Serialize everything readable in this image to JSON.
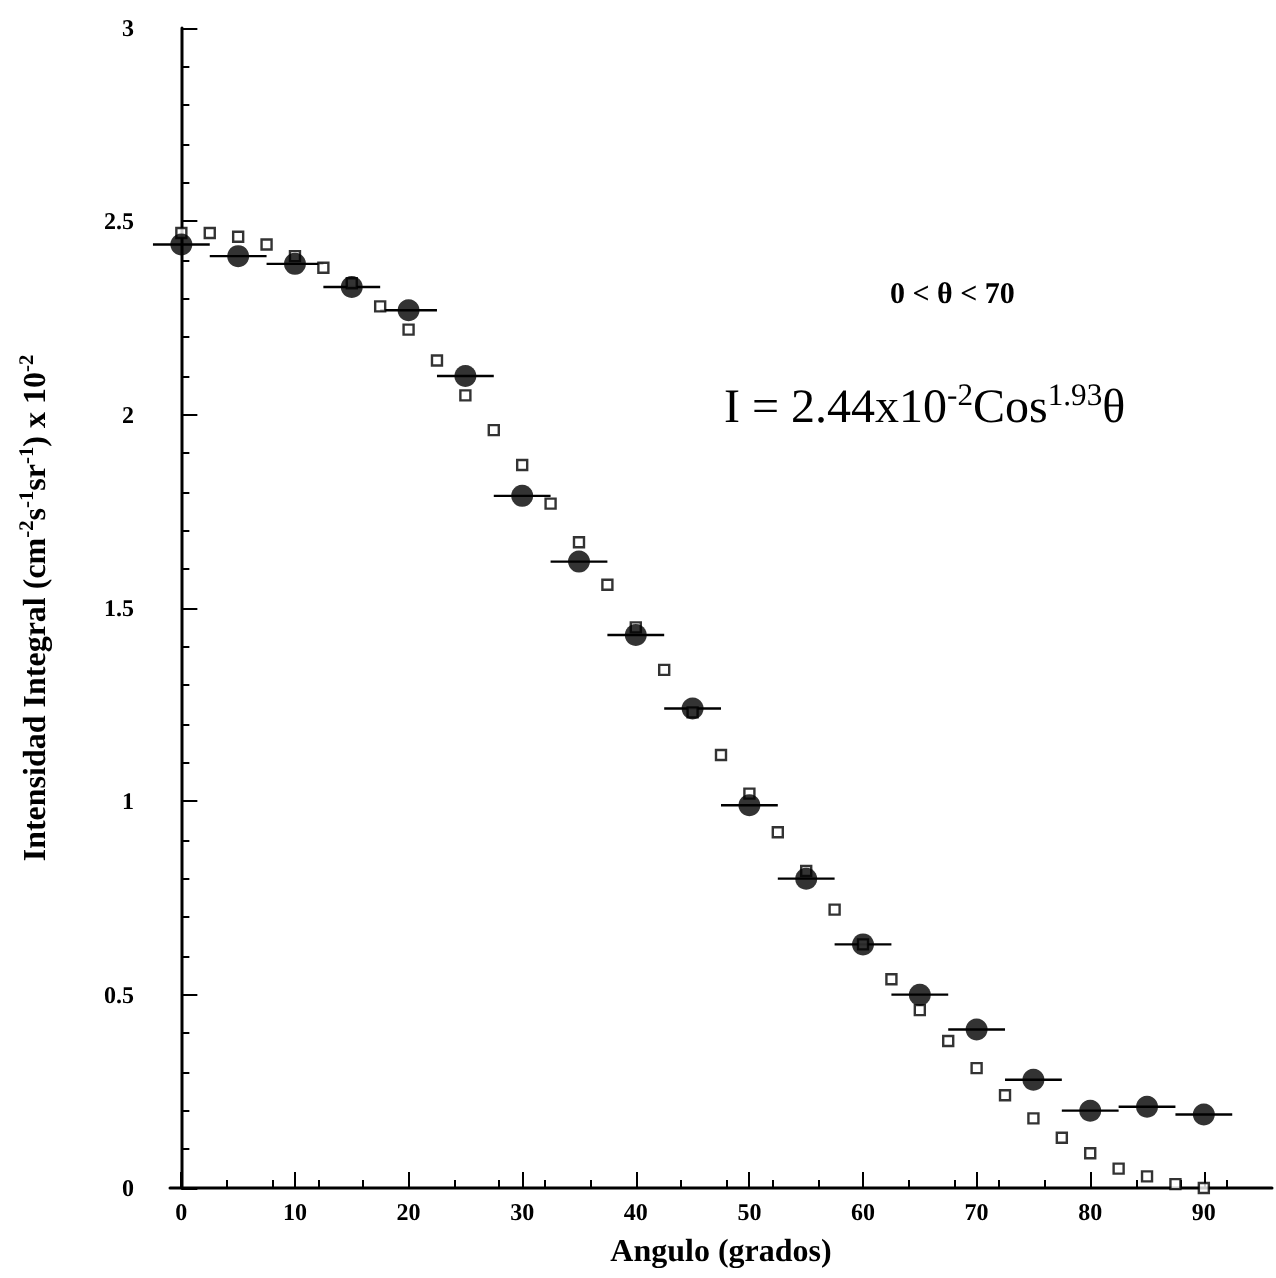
{
  "chart_data": {
    "type": "scatter",
    "xlabel": "Angulo (grados)",
    "ylabel": "Intensidad Integral (cm$^{-2}$s$^{-1}$sr$^{-1}$) x 10$^{-2}$",
    "annotations": [
      "0 < θ < 70",
      "I = 2.44x10$^{-2}$Cos$^{1.93}$θ"
    ],
    "xlim": [
      -1,
      96
    ],
    "xticks": [
      0,
      10,
      20,
      30,
      40,
      50,
      60,
      70,
      80,
      90
    ],
    "ylim": [
      0,
      3
    ],
    "yticks": [
      0,
      0.5,
      1,
      1.5,
      2,
      2.5,
      3
    ],
    "grid": false,
    "series": [
      {
        "marker": "square",
        "color": "#000000",
        "x": [
          0,
          2.5,
          5,
          7.5,
          10,
          12.5,
          15,
          17.5,
          20,
          22.5,
          25,
          27.5,
          30,
          32.5,
          35,
          37.5,
          40,
          42.5,
          45,
          47.5,
          50,
          52.5,
          55,
          57.5,
          60,
          62.5,
          65,
          67.5,
          70,
          72.5,
          75,
          77.5,
          80,
          82.5,
          85,
          87.5,
          90
        ],
        "values": [
          2.47,
          2.47,
          2.46,
          2.44,
          2.41,
          2.38,
          2.34,
          2.28,
          2.22,
          2.14,
          2.05,
          1.96,
          1.87,
          1.77,
          1.67,
          1.56,
          1.45,
          1.34,
          1.23,
          1.12,
          1.02,
          0.92,
          0.82,
          0.72,
          0.63,
          0.54,
          0.46,
          0.38,
          0.31,
          0.24,
          0.18,
          0.13,
          0.09,
          0.05,
          0.03,
          0.01,
          0
        ]
      },
      {
        "marker": "circle",
        "color": "#000000",
        "x": [
          0,
          5,
          10,
          15,
          20,
          25,
          30,
          35,
          40,
          45,
          50,
          55,
          60,
          65,
          70,
          75,
          80,
          85,
          90
        ],
        "values": [
          2.44,
          2.41,
          2.39,
          2.33,
          2.27,
          2.1,
          1.79,
          1.62,
          1.43,
          1.24,
          0.99,
          0.8,
          0.63,
          0.5,
          0.41,
          0.28,
          0.2,
          0.21,
          0.19
        ],
        "xerrors": [
          2.5,
          2.5,
          2.5,
          2.5,
          2.5,
          2.5,
          2.5,
          2.5,
          2.5,
          2.5,
          2.5,
          2.5,
          2.5,
          2.5,
          2.5,
          2.5,
          2.5,
          2.5,
          2.5
        ]
      }
    ]
  }
}
